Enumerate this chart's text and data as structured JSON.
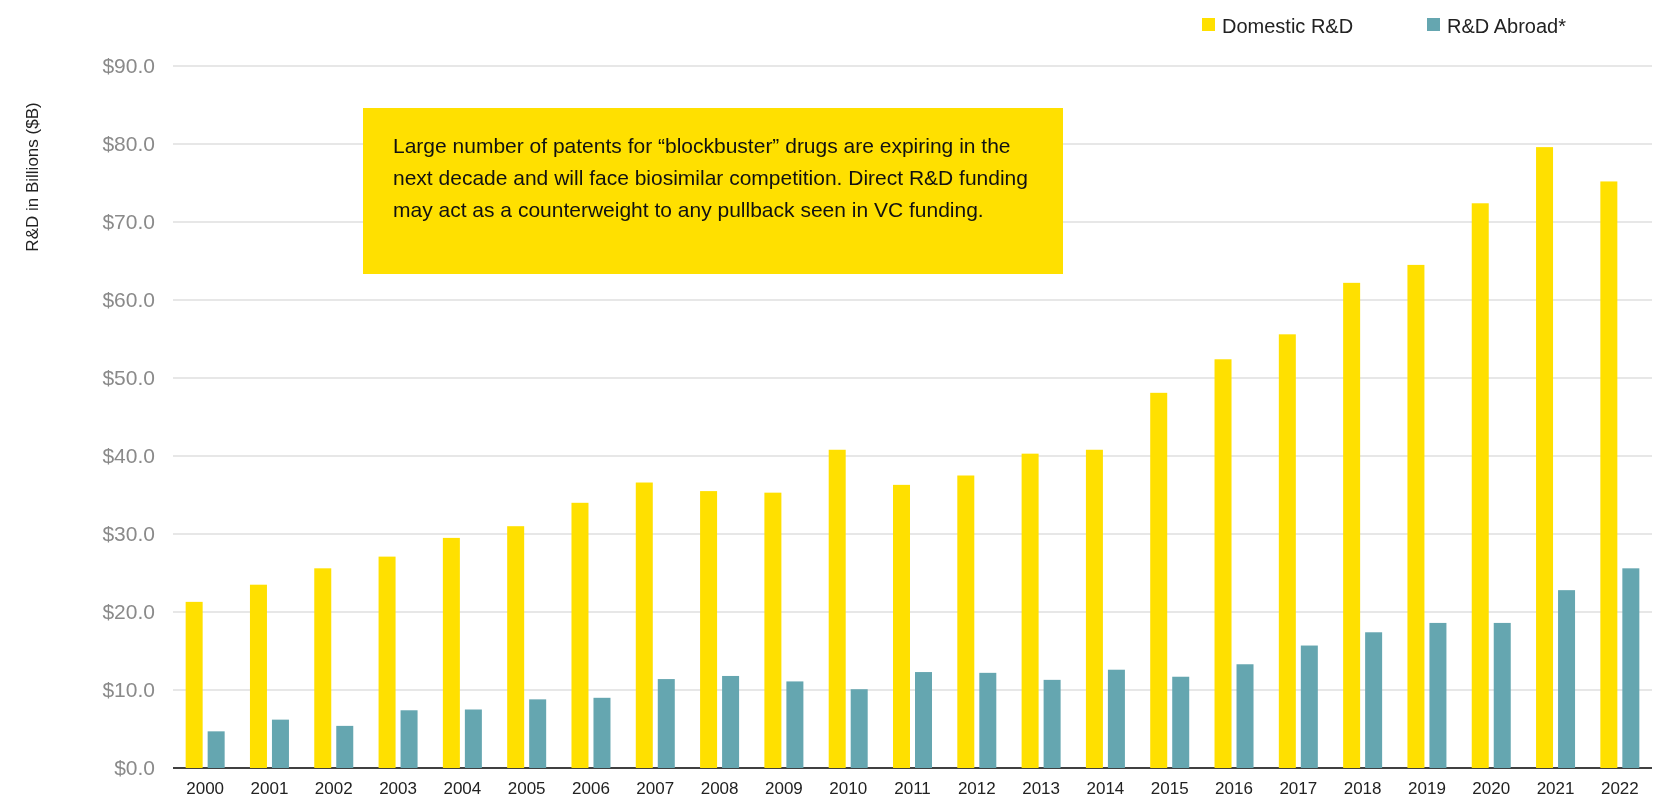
{
  "chart_data": {
    "type": "bar",
    "ylabel": "R&D in Billions ($B)",
    "categories": [
      "2000",
      "2001",
      "2002",
      "2003",
      "2004",
      "2005",
      "2006",
      "2007",
      "2008",
      "2009",
      "2010",
      "2011",
      "2012",
      "2013",
      "2014",
      "2015",
      "2016",
      "2017",
      "2018",
      "2019",
      "2020",
      "2021",
      "2022"
    ],
    "series": [
      {
        "name": "Domestic R&D",
        "color": "#ffe000",
        "values": [
          21.3,
          23.5,
          25.6,
          27.1,
          29.5,
          31.0,
          34.0,
          36.6,
          35.5,
          35.3,
          40.8,
          36.3,
          37.5,
          40.3,
          40.8,
          48.1,
          52.4,
          55.6,
          62.2,
          64.5,
          72.4,
          79.6,
          75.2
        ]
      },
      {
        "name": "R&D Abroad*",
        "color": "#65a6b0",
        "values": [
          4.7,
          6.2,
          5.4,
          7.4,
          7.5,
          8.8,
          9.0,
          11.4,
          11.8,
          11.1,
          10.1,
          12.3,
          12.2,
          11.3,
          12.6,
          11.7,
          13.3,
          15.7,
          17.4,
          18.6,
          18.6,
          22.8,
          25.6
        ]
      }
    ],
    "ylim": [
      0,
      90
    ],
    "yticks": [
      {
        "value": 0,
        "label": "$0.0"
      },
      {
        "value": 10,
        "label": "$10.0"
      },
      {
        "value": 20,
        "label": "$20.0"
      },
      {
        "value": 30,
        "label": "$30.0"
      },
      {
        "value": 40,
        "label": "$40.0"
      },
      {
        "value": 50,
        "label": "$50.0"
      },
      {
        "value": 60,
        "label": "$60.0"
      },
      {
        "value": 70,
        "label": "$70.0"
      },
      {
        "value": 80,
        "label": "$80.0"
      },
      {
        "value": 90,
        "label": "$90.0"
      }
    ],
    "grid": "y",
    "legend": "top right",
    "annotations": [
      "Large number of patents for “blockbuster” drugs are expiring in the next decade and will face biosimilar competition. Direct R&D funding may act as a counterweight to any pullback seen in VC funding."
    ]
  }
}
